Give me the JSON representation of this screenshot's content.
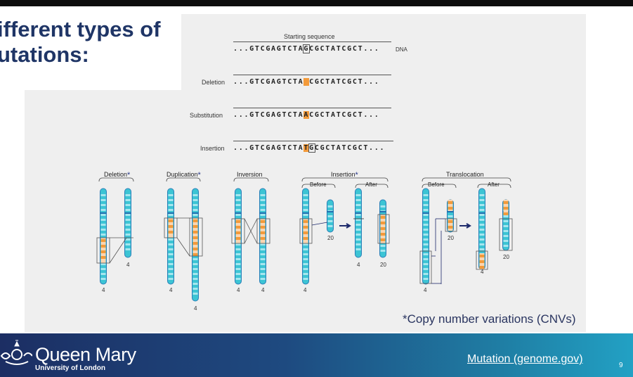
{
  "slide": {
    "title_line1": "ifferent types of",
    "title_line2": "utations:",
    "page_number": "9"
  },
  "sequences": {
    "header": "Starting sequence",
    "dna_label": "DNA",
    "start": {
      "prefix": "...GTCGAGTCTA",
      "mark": "G",
      "suffix": "CGCTATCGCT..."
    },
    "rows": [
      {
        "label": "Deletion",
        "prefix": "...GTCGAGTCTA",
        "mark": " ",
        "suffix": "CGCTATCGCT..."
      },
      {
        "label": "Substitution",
        "prefix": "...GTCGAGTCTA",
        "mark": "A",
        "suffix": "CGCTATCGCT..."
      },
      {
        "label": "Insertion",
        "prefix": "...GTCGAGTCTA",
        "mark": "T",
        "mark2": "G",
        "suffix": "CGCTATCGCT..."
      }
    ]
  },
  "chromosomes": {
    "groups": [
      {
        "title": "Deletion",
        "cnv": true,
        "numbers": [
          "4",
          "4"
        ]
      },
      {
        "title": "Duplication",
        "cnv": true,
        "numbers": [
          "4",
          "4"
        ]
      },
      {
        "title": "Inversion",
        "cnv": false,
        "numbers": [
          "4",
          "4"
        ]
      },
      {
        "title": "Insertion",
        "cnv": true,
        "before": "Before",
        "after": "After",
        "numbers": [
          "20",
          "4",
          "4",
          "20"
        ]
      },
      {
        "title": "Translocation",
        "cnv": false,
        "before": "Before",
        "after": "After",
        "numbers": [
          "20",
          "4",
          "4",
          "20"
        ]
      }
    ],
    "star": "*",
    "colors": {
      "cyan": "#3cc4d4",
      "light_cyan": "#a6e6ee",
      "orange": "#f39a3a",
      "peach": "#fbd5b0",
      "arrow": "#1d2a6b"
    }
  },
  "footnote": "*Copy number variations (CNVs)",
  "footer": {
    "logo_name": "Queen Mary",
    "logo_sub": "University of London",
    "link_text": "Mutation (genome.gov)"
  }
}
